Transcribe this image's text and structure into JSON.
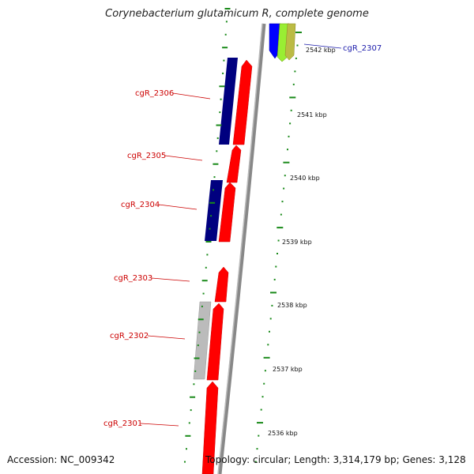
{
  "title": "Corynebacterium glutamicum R, complete genome",
  "footer": {
    "accession": "Accession: NC_009342",
    "summary": "Topology: circular; Length: 3,314,179 bp; Genes: 3,128"
  },
  "kbp_ticks": [
    "2542 kbp",
    "2541 kbp",
    "2540 kbp",
    "2539 kbp",
    "2538 kbp",
    "2537 kbp",
    "2536 kbp"
  ],
  "gene_labels": [
    {
      "name": "cgR_2307",
      "color": "#1a1aaa"
    },
    {
      "name": "cgR_2306",
      "color": "#cc0000"
    },
    {
      "name": "cgR_2305",
      "color": "#cc0000"
    },
    {
      "name": "cgR_2304",
      "color": "#cc0000"
    },
    {
      "name": "cgR_2303",
      "color": "#cc0000"
    },
    {
      "name": "cgR_2302",
      "color": "#cc0000"
    },
    {
      "name": "cgR_2301",
      "color": "#cc0000"
    }
  ],
  "colors": {
    "forward_cds": "#ff0000",
    "reverse_dark": "#00007f",
    "other_blue": "#0000ff",
    "other_lime": "#99ee33",
    "other_olive": "#bbbb44",
    "pseudo_gray": "#bbbbbb",
    "backbone": "#888888",
    "tick_green": "#1a8a1a"
  }
}
